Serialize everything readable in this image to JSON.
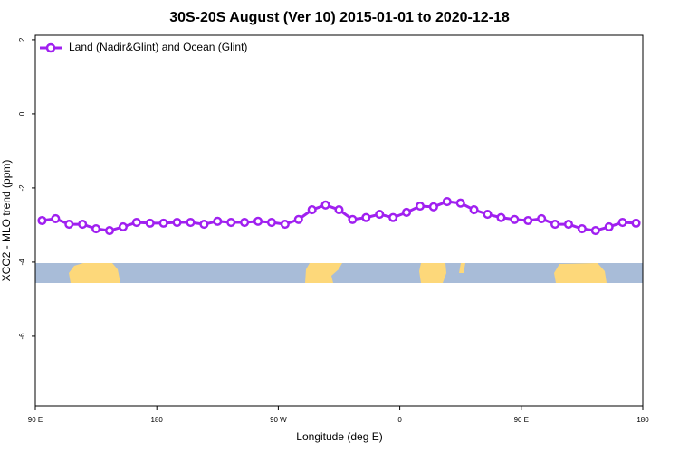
{
  "chart_data": {
    "type": "line",
    "title": "30S-20S August (Ver 10)   2015-01-01 to 2020-12-18",
    "x_label": "Longitude (deg E)",
    "y_label": "XCO2 - MLO trend (ppm)",
    "x": [
      95,
      105,
      115,
      125,
      135,
      145,
      155,
      165,
      175,
      185,
      195,
      205,
      215,
      225,
      235,
      245,
      255,
      265,
      275,
      285,
      295,
      305,
      315,
      325,
      335,
      345,
      355,
      365,
      375,
      385,
      395,
      405,
      415,
      425,
      435,
      445,
      455,
      465,
      475,
      485,
      495,
      505,
      515,
      525,
      535
    ],
    "series": [
      {
        "name": "Land (Nadir&Glint) and Ocean (Glint)",
        "color": "#a020f0",
        "values": [
          -2.88,
          -2.83,
          -2.98,
          -2.98,
          -3.1,
          -3.15,
          -3.05,
          -2.93,
          -2.95,
          -2.95,
          -2.93,
          -2.93,
          -2.98,
          -2.9,
          -2.93,
          -2.93,
          -2.9,
          -2.93,
          -2.98,
          -2.85,
          -2.59,
          -2.46,
          -2.59,
          -2.85,
          -2.8,
          -2.71,
          -2.8,
          -2.66,
          -2.49,
          -2.51,
          -2.37,
          -2.41,
          -2.59,
          -2.71,
          -2.8,
          -2.85,
          -2.88,
          -2.83,
          -2.98,
          -2.98,
          -3.1,
          -3.15,
          -3.05,
          -2.93,
          -2.95
        ]
      }
    ],
    "xlim": [
      90,
      540
    ],
    "xticks": [
      {
        "value": 90,
        "label": "90 E"
      },
      180,
      {
        "value": 270,
        "label": "90 W"
      },
      {
        "value": 360,
        "label": "0"
      },
      {
        "value": 450,
        "label": "90 E"
      },
      {
        "value": 540,
        "label": "180"
      }
    ],
    "ylim": [
      -7.88,
      2.12
    ],
    "yticks": [
      -6,
      -4,
      -2,
      0,
      2
    ],
    "legend_position": "top-left"
  }
}
